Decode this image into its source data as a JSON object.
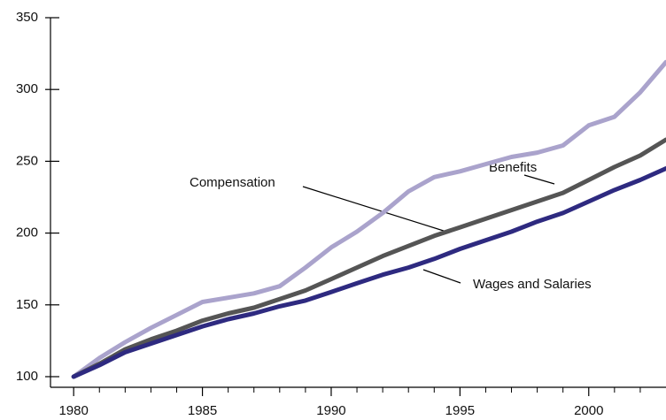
{
  "chart_data": {
    "type": "line",
    "x": [
      1980,
      1981,
      1982,
      1983,
      1984,
      1985,
      1986,
      1987,
      1988,
      1989,
      1990,
      1991,
      1992,
      1993,
      1994,
      1995,
      1996,
      1997,
      1998,
      1999,
      2000,
      2001,
      2002,
      2003
    ],
    "series": [
      {
        "name": "Benefits",
        "color": "#aaa3cc",
        "values": [
          100,
          113,
          124,
          134,
          143,
          152,
          155,
          158,
          163,
          176,
          190,
          201,
          214,
          229,
          239,
          243,
          248,
          253,
          256,
          261,
          275,
          281,
          298,
          319
        ]
      },
      {
        "name": "Compensation",
        "color": "#555555",
        "values": [
          100,
          109,
          119,
          126,
          132,
          139,
          144,
          148,
          154,
          160,
          168,
          176,
          184,
          191,
          198,
          204,
          210,
          216,
          222,
          228,
          237,
          246,
          254,
          265
        ]
      },
      {
        "name": "Wages and Salaries",
        "color": "#2e2a80",
        "values": [
          100,
          108,
          117,
          123,
          129,
          135,
          140,
          144,
          149,
          153,
          159,
          165,
          171,
          176,
          182,
          189,
          195,
          201,
          208,
          214,
          222,
          230,
          237,
          245
        ]
      }
    ],
    "xlim": [
      1979.1,
      2003
    ],
    "xticks": [
      1980,
      1985,
      1990,
      1995,
      2000
    ],
    "xminor_ticks": [
      1981,
      1982,
      1983,
      1984,
      1986,
      1987,
      1988,
      1989,
      1991,
      1992,
      1993,
      1994,
      1996,
      1997,
      1998,
      1999,
      2001,
      2002
    ],
    "ylim": [
      92.6,
      350
    ],
    "yticks": [
      100,
      150,
      200,
      250,
      300,
      350
    ]
  }
}
